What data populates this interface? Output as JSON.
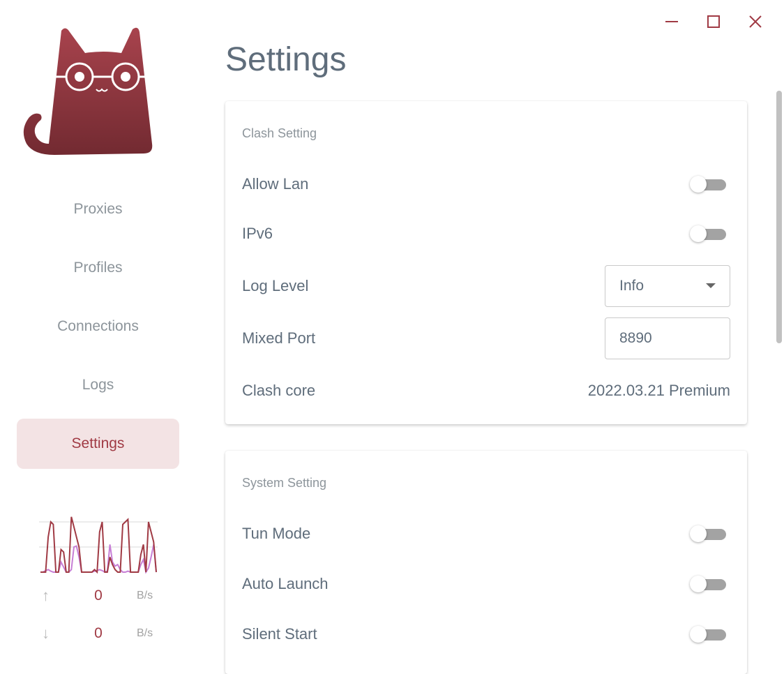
{
  "window_controls": {
    "minimize": "minimize-icon",
    "maximize": "maximize-icon",
    "close": "close-icon"
  },
  "colors": {
    "accent": "#a03a44",
    "nav_active_bg": "#f3e3e4",
    "text": "#5f6d7b",
    "upload_line": "#a03a44",
    "download_line": "#c77fd6"
  },
  "sidebar": {
    "items": [
      {
        "label": "Proxies"
      },
      {
        "label": "Profiles"
      },
      {
        "label": "Connections"
      },
      {
        "label": "Logs"
      },
      {
        "label": "Settings",
        "active": true
      }
    ],
    "traffic": {
      "upload": [
        0,
        0,
        0,
        70,
        100,
        95,
        0,
        0,
        45,
        40,
        0,
        0,
        110,
        90,
        70,
        50,
        0,
        0,
        0,
        0,
        0,
        5,
        0,
        80,
        100,
        0,
        0,
        30,
        15,
        5,
        0,
        0,
        95,
        100,
        105,
        0,
        0,
        0,
        0,
        35,
        55,
        0,
        100,
        80,
        60,
        0
      ],
      "download": [
        0,
        0,
        3,
        5,
        2,
        0,
        0,
        0,
        20,
        10,
        0,
        0,
        5,
        50,
        52,
        30,
        0,
        0,
        0,
        0,
        0,
        2,
        3,
        5,
        3,
        0,
        2,
        55,
        20,
        12,
        15,
        5,
        0,
        0,
        2,
        0,
        0,
        0,
        0,
        15,
        25,
        0,
        8,
        30,
        55,
        0
      ],
      "up": {
        "icon": "arrow-up-icon",
        "value": "0",
        "unit": "B/s"
      },
      "down": {
        "icon": "arrow-down-icon",
        "value": "0",
        "unit": "B/s"
      }
    }
  },
  "page_title": "Settings",
  "clash": {
    "title": "Clash Setting",
    "allow_lan": {
      "label": "Allow Lan",
      "on": false
    },
    "ipv6": {
      "label": "IPv6",
      "on": false
    },
    "log_level": {
      "label": "Log Level",
      "value": "Info"
    },
    "mixed_port": {
      "label": "Mixed Port",
      "value": "8890"
    },
    "core": {
      "label": "Clash core",
      "value": "2022.03.21 Premium"
    }
  },
  "system": {
    "title": "System Setting",
    "tun": {
      "label": "Tun Mode",
      "on": false
    },
    "auto_launch": {
      "label": "Auto Launch",
      "on": false
    },
    "silent_start": {
      "label": "Silent Start",
      "on": false
    }
  }
}
